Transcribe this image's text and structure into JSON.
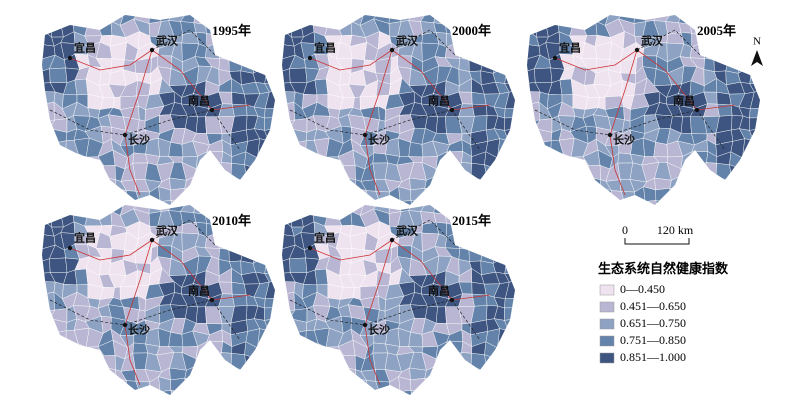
{
  "maps": [
    {
      "year": "1995年",
      "cities": [
        "宜昌",
        "武汉",
        "南昌",
        "长沙"
      ]
    },
    {
      "year": "2000年",
      "cities": [
        "宜昌",
        "武汉",
        "南昌",
        "长沙"
      ]
    },
    {
      "year": "2005年",
      "cities": [
        "宜昌",
        "武汉",
        "南昌",
        "长沙"
      ]
    },
    {
      "year": "2010年",
      "cities": [
        "宜昌",
        "武汉",
        "南昌",
        "长沙"
      ]
    },
    {
      "year": "2015年",
      "cities": [
        "宜昌",
        "武汉",
        "南昌",
        "长沙"
      ]
    }
  ],
  "north": "N",
  "scale_bar": {
    "start": "0",
    "end": "120 km"
  },
  "legend": {
    "title": "生态系统自然健康指数",
    "items": [
      {
        "label": "0—0.450",
        "color": "#efe3ef"
      },
      {
        "label": "0.451—0.650",
        "color": "#b8b6d3"
      },
      {
        "label": "0.651—0.750",
        "color": "#8ea3c3"
      },
      {
        "label": "0.751—0.850",
        "color": "#6483aa"
      },
      {
        "label": "0.851—1.000",
        "color": "#3d5580"
      }
    ]
  }
}
